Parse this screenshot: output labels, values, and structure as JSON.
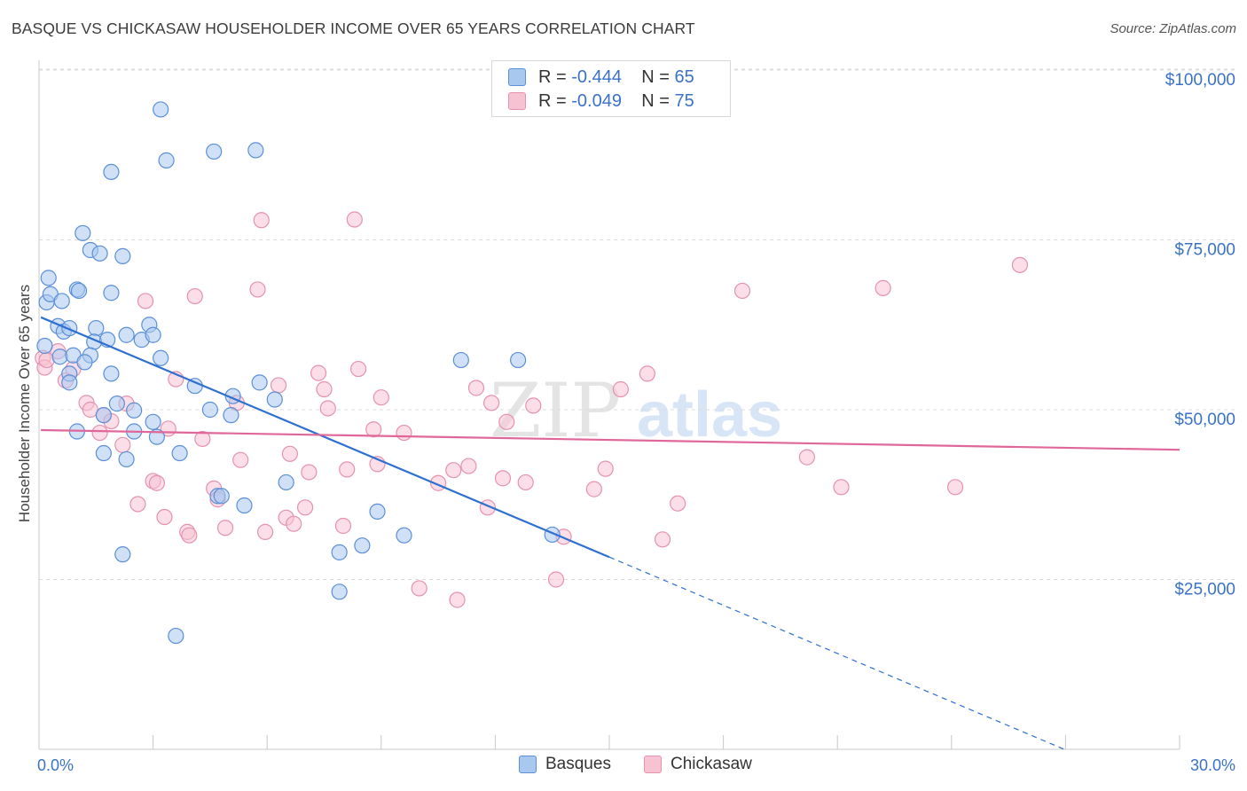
{
  "title": "BASQUE VS CHICKASAW HOUSEHOLDER INCOME OVER 65 YEARS CORRELATION CHART",
  "source": "Source: ZipAtlas.com",
  "watermark": {
    "zip": "ZIP",
    "atlas": "atlas"
  },
  "legend": {
    "r_label": "R =",
    "n_label": "N =",
    "rows": [
      {
        "r": "-0.444",
        "n": "65"
      },
      {
        "r": "-0.049",
        "n": "75"
      }
    ]
  },
  "bottom_legend": [
    "Basques",
    "Chickasaw"
  ],
  "colors": {
    "blue_fill": "#a9c8f0",
    "blue_stroke": "#5b8fd6",
    "blue_line": "#2e6fd0",
    "pink_fill": "#f7c3d3",
    "pink_stroke": "#e592ae",
    "pink_line": "#e0679a",
    "axis_text": "#3a72c8",
    "grid": "#dcdcdc"
  },
  "chart_data": {
    "type": "scatter",
    "title": "BASQUE VS CHICKASAW HOUSEHOLDER INCOME OVER 65 YEARS CORRELATION CHART",
    "xlabel": "",
    "ylabel": "Householder Income Over 65 years",
    "xlim": [
      0,
      30
    ],
    "ylim": [
      0,
      102000
    ],
    "x_tick_labels": [
      "0.0%",
      "30.0%"
    ],
    "y_ticks": [
      25000,
      50000,
      75000,
      100000
    ],
    "y_tick_labels": [
      "$25,000",
      "$50,000",
      "$75,000",
      "$100,000"
    ],
    "grid": true,
    "legend_position": "top-center",
    "series": [
      {
        "name": "Basques",
        "r": -0.444,
        "n": 65,
        "trend": {
          "x0": 0.05,
          "y0": 63600,
          "x1": 15.0,
          "y1": 28300,
          "dashed_to_x": 30.0,
          "dashed_to_y": -7000
        },
        "points": [
          [
            0.2,
            65800
          ],
          [
            0.3,
            67000
          ],
          [
            0.25,
            69400
          ],
          [
            0.6,
            66000
          ],
          [
            0.5,
            62300
          ],
          [
            0.65,
            61500
          ],
          [
            0.55,
            57800
          ],
          [
            0.8,
            55300
          ],
          [
            0.8,
            54000
          ],
          [
            1.0,
            67700
          ],
          [
            1.05,
            67500
          ],
          [
            1.15,
            76000
          ],
          [
            1.35,
            73500
          ],
          [
            1.6,
            73000
          ],
          [
            2.2,
            72600
          ],
          [
            1.9,
            67200
          ],
          [
            1.5,
            62000
          ],
          [
            1.45,
            60000
          ],
          [
            1.8,
            60300
          ],
          [
            1.35,
            58000
          ],
          [
            2.3,
            61000
          ],
          [
            2.7,
            60300
          ],
          [
            2.9,
            62500
          ],
          [
            3.0,
            61000
          ],
          [
            3.2,
            57600
          ],
          [
            1.9,
            55300
          ],
          [
            2.05,
            50900
          ],
          [
            2.5,
            49900
          ],
          [
            1.7,
            49200
          ],
          [
            3.0,
            48200
          ],
          [
            3.1,
            46000
          ],
          [
            2.5,
            46800
          ],
          [
            1.0,
            46800
          ],
          [
            1.7,
            43600
          ],
          [
            2.3,
            42700
          ],
          [
            3.7,
            43600
          ],
          [
            4.1,
            53500
          ],
          [
            4.5,
            50000
          ],
          [
            5.1,
            52000
          ],
          [
            5.05,
            49200
          ],
          [
            5.8,
            54000
          ],
          [
            6.2,
            51500
          ],
          [
            4.7,
            37300
          ],
          [
            4.8,
            37300
          ],
          [
            5.4,
            35900
          ],
          [
            6.5,
            39300
          ],
          [
            2.2,
            28700
          ],
          [
            3.6,
            16700
          ],
          [
            3.2,
            94200
          ],
          [
            3.35,
            86700
          ],
          [
            4.6,
            88000
          ],
          [
            5.7,
            88200
          ],
          [
            1.9,
            85000
          ],
          [
            7.9,
            23200
          ],
          [
            7.9,
            29000
          ],
          [
            8.5,
            30000
          ],
          [
            8.9,
            35000
          ],
          [
            9.6,
            31500
          ],
          [
            11.1,
            57300
          ],
          [
            12.6,
            57300
          ],
          [
            13.5,
            31600
          ],
          [
            0.15,
            59400
          ],
          [
            0.8,
            62000
          ],
          [
            0.9,
            58000
          ],
          [
            1.2,
            57000
          ]
        ]
      },
      {
        "name": "Chickasaw",
        "r": -0.049,
        "n": 75,
        "trend": {
          "x0": 0.05,
          "y0": 47000,
          "x1": 30.0,
          "y1": 44100
        },
        "points": [
          [
            0.1,
            57600
          ],
          [
            0.15,
            56200
          ],
          [
            0.2,
            57300
          ],
          [
            0.5,
            58600
          ],
          [
            0.7,
            54300
          ],
          [
            0.9,
            56000
          ],
          [
            1.25,
            51000
          ],
          [
            1.35,
            50000
          ],
          [
            1.7,
            49200
          ],
          [
            1.9,
            48300
          ],
          [
            1.6,
            46600
          ],
          [
            2.2,
            44800
          ],
          [
            2.3,
            50900
          ],
          [
            2.6,
            36100
          ],
          [
            2.8,
            66000
          ],
          [
            3.0,
            39500
          ],
          [
            3.1,
            39200
          ],
          [
            3.3,
            34200
          ],
          [
            3.4,
            47200
          ],
          [
            3.6,
            54500
          ],
          [
            3.9,
            32000
          ],
          [
            3.95,
            31500
          ],
          [
            4.1,
            66700
          ],
          [
            4.3,
            45700
          ],
          [
            4.6,
            38400
          ],
          [
            4.7,
            36800
          ],
          [
            4.9,
            32600
          ],
          [
            5.2,
            51000
          ],
          [
            5.3,
            42600
          ],
          [
            5.75,
            67700
          ],
          [
            5.85,
            77900
          ],
          [
            5.95,
            32000
          ],
          [
            6.3,
            53600
          ],
          [
            6.5,
            34100
          ],
          [
            6.6,
            43500
          ],
          [
            6.7,
            33200
          ],
          [
            7.0,
            35600
          ],
          [
            7.1,
            40800
          ],
          [
            7.35,
            55400
          ],
          [
            7.5,
            53000
          ],
          [
            7.6,
            50200
          ],
          [
            8.0,
            32900
          ],
          [
            8.1,
            41200
          ],
          [
            8.3,
            78000
          ],
          [
            8.4,
            56000
          ],
          [
            8.8,
            47100
          ],
          [
            8.9,
            42000
          ],
          [
            9.0,
            51800
          ],
          [
            9.6,
            46600
          ],
          [
            10.0,
            23700
          ],
          [
            10.5,
            39200
          ],
          [
            10.9,
            41100
          ],
          [
            11.0,
            22000
          ],
          [
            11.3,
            41700
          ],
          [
            11.5,
            53200
          ],
          [
            11.8,
            35600
          ],
          [
            11.9,
            51000
          ],
          [
            12.2,
            39900
          ],
          [
            12.3,
            48200
          ],
          [
            12.8,
            39300
          ],
          [
            13.0,
            50600
          ],
          [
            13.6,
            25000
          ],
          [
            13.8,
            31300
          ],
          [
            14.6,
            38300
          ],
          [
            14.9,
            41300
          ],
          [
            15.3,
            53000
          ],
          [
            16.0,
            55300
          ],
          [
            16.4,
            30900
          ],
          [
            16.8,
            36200
          ],
          [
            18.5,
            67500
          ],
          [
            20.2,
            43000
          ],
          [
            21.1,
            38600
          ],
          [
            22.2,
            67900
          ],
          [
            24.1,
            38600
          ],
          [
            25.8,
            71300
          ]
        ]
      }
    ]
  }
}
